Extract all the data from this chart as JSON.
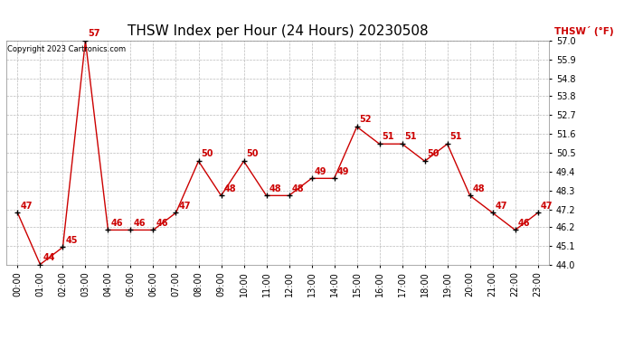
{
  "title": "THSW Index per Hour (24 Hours) 20230508",
  "copyright": "Copyright 2023 Cartronics.com",
  "legend_label": "THSW´ (°F)",
  "hours": [
    0,
    1,
    2,
    3,
    4,
    5,
    6,
    7,
    8,
    9,
    10,
    11,
    12,
    13,
    14,
    15,
    16,
    17,
    18,
    19,
    20,
    21,
    22,
    23
  ],
  "hour_labels": [
    "00:00",
    "01:00",
    "02:00",
    "03:00",
    "04:00",
    "05:00",
    "06:00",
    "07:00",
    "08:00",
    "09:00",
    "10:00",
    "11:00",
    "12:00",
    "13:00",
    "14:00",
    "15:00",
    "16:00",
    "17:00",
    "18:00",
    "19:00",
    "20:00",
    "21:00",
    "22:00",
    "23:00"
  ],
  "values": [
    47,
    44,
    45,
    57,
    46,
    46,
    46,
    47,
    50,
    48,
    50,
    48,
    48,
    49,
    49,
    52,
    51,
    51,
    50,
    51,
    48,
    47,
    46,
    47
  ],
  "line_color": "#cc0000",
  "marker_color": "#000000",
  "grid_color": "#bbbbbb",
  "background_color": "#ffffff",
  "plot_bg_color": "#ffffff",
  "ylim": [
    44.0,
    57.0
  ],
  "yticks": [
    44.0,
    45.1,
    46.2,
    47.2,
    48.3,
    49.4,
    50.5,
    51.6,
    52.7,
    53.8,
    54.8,
    55.9,
    57.0
  ],
  "title_fontsize": 11,
  "legend_fontsize": 7.5,
  "tick_fontsize": 7,
  "annotation_fontsize": 7,
  "copyright_fontsize": 6
}
